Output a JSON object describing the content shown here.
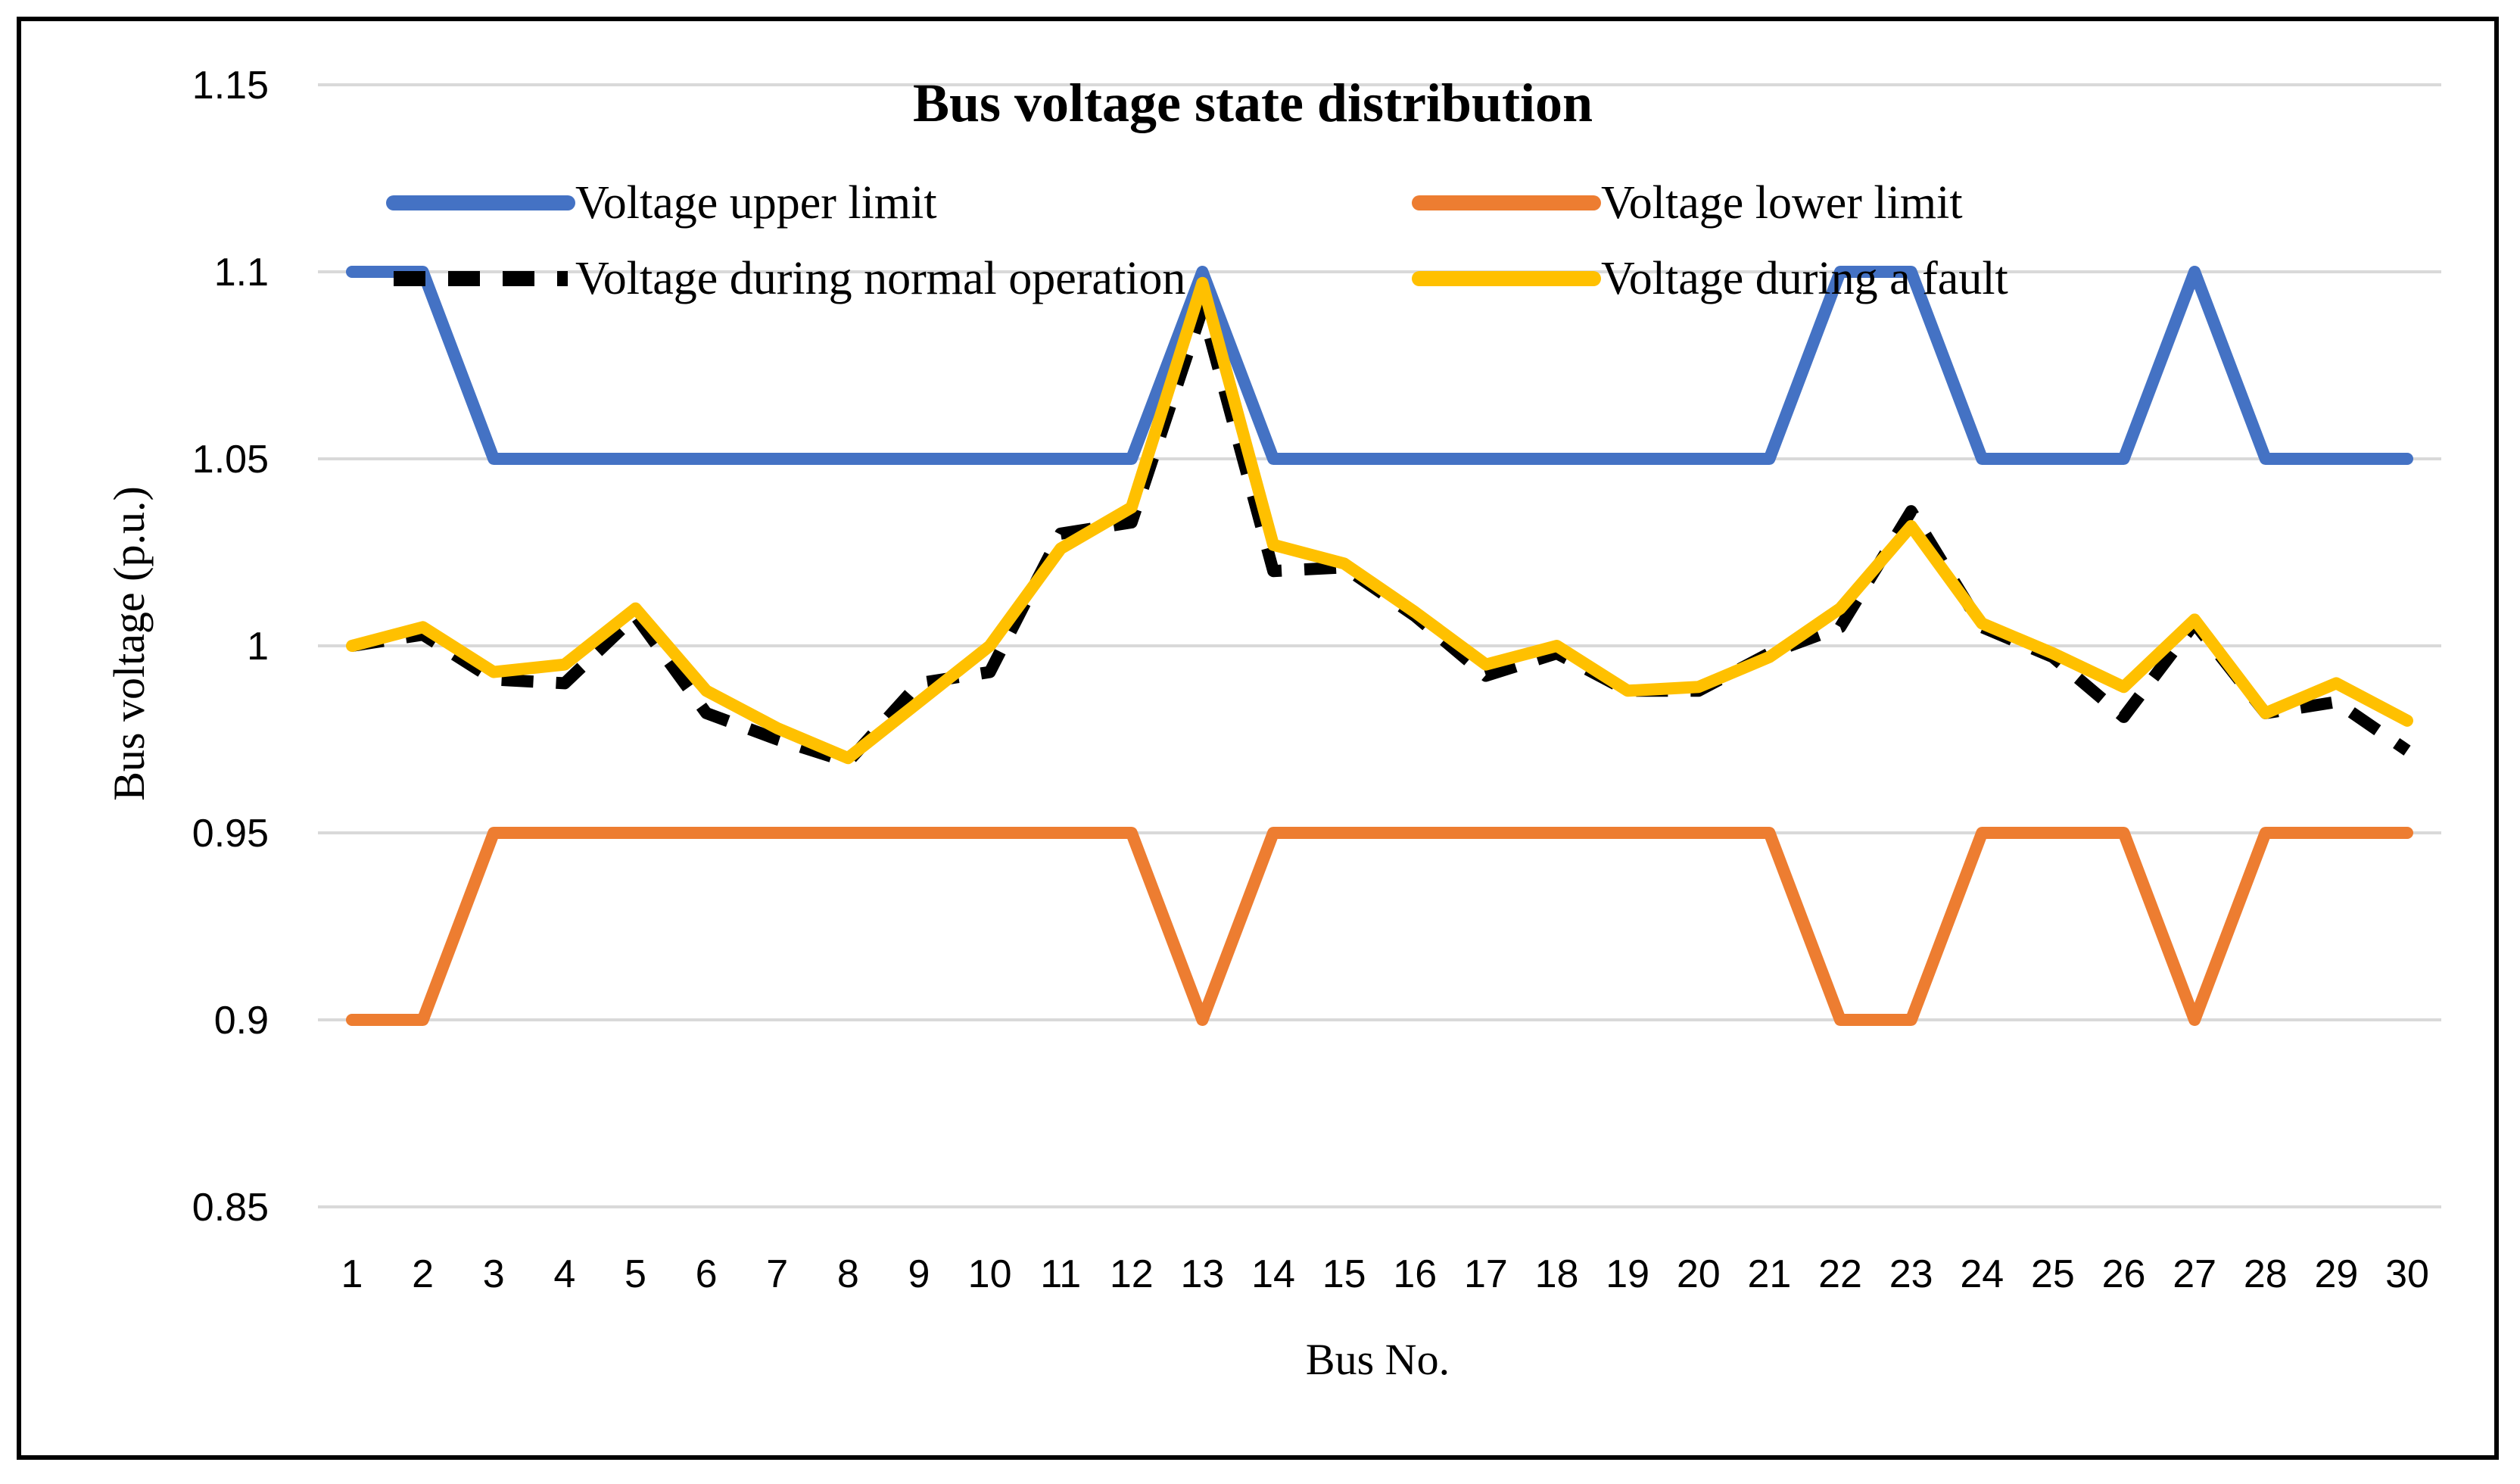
{
  "chart_data": {
    "type": "line",
    "title": "Bus voltage state distribution",
    "xlabel": "Bus No.",
    "ylabel": "Bus voltage (p.u.)",
    "ylim": [
      0.85,
      1.15
    ],
    "yticks": [
      0.85,
      0.9,
      0.95,
      1,
      1.05,
      1.1,
      1.15
    ],
    "ytick_labels": [
      "0.85",
      "0.9",
      "0.95",
      "1",
      "1.05",
      "1.1",
      "1.15"
    ],
    "grid": true,
    "legend_position": "top",
    "categories": [
      "1",
      "2",
      "3",
      "4",
      "5",
      "6",
      "7",
      "8",
      "9",
      "10",
      "11",
      "12",
      "13",
      "14",
      "15",
      "16",
      "17",
      "18",
      "19",
      "20",
      "21",
      "22",
      "23",
      "24",
      "25",
      "26",
      "27",
      "28",
      "29",
      "30"
    ],
    "series": [
      {
        "name": "Voltage upper limit",
        "color": "#4472C4",
        "style": "solid",
        "values": [
          1.1,
          1.1,
          1.05,
          1.05,
          1.05,
          1.05,
          1.05,
          1.05,
          1.05,
          1.05,
          1.05,
          1.05,
          1.1,
          1.05,
          1.05,
          1.05,
          1.05,
          1.05,
          1.05,
          1.05,
          1.05,
          1.1,
          1.1,
          1.05,
          1.05,
          1.05,
          1.1,
          1.05,
          1.05,
          1.05
        ]
      },
      {
        "name": "Voltage lower limit",
        "color": "#ED7D31",
        "style": "solid",
        "values": [
          0.9,
          0.9,
          0.95,
          0.95,
          0.95,
          0.95,
          0.95,
          0.95,
          0.95,
          0.95,
          0.95,
          0.95,
          0.9,
          0.95,
          0.95,
          0.95,
          0.95,
          0.95,
          0.95,
          0.95,
          0.95,
          0.9,
          0.9,
          0.95,
          0.95,
          0.95,
          0.9,
          0.95,
          0.95,
          0.95
        ]
      },
      {
        "name": "Voltage during normal operation",
        "color": "#000000",
        "style": "dashed",
        "values": [
          1.0,
          1.003,
          0.991,
          0.99,
          1.008,
          0.982,
          0.975,
          0.969,
          0.99,
          0.993,
          1.03,
          1.033,
          1.09,
          1.02,
          1.021,
          1.008,
          0.992,
          0.998,
          0.988,
          0.988,
          0.998,
          1.005,
          1.036,
          1.005,
          0.997,
          0.981,
          1.006,
          0.982,
          0.985,
          0.972
        ]
      },
      {
        "name": "Voltage during a fault",
        "color": "#FFC000",
        "style": "solid",
        "values": [
          1.0,
          1.005,
          0.993,
          0.995,
          1.01,
          0.988,
          0.978,
          0.97,
          0.985,
          1.0,
          1.026,
          1.037,
          1.097,
          1.027,
          1.022,
          1.009,
          0.995,
          1.0,
          0.988,
          0.989,
          0.997,
          1.01,
          1.032,
          1.006,
          0.998,
          0.989,
          1.007,
          0.982,
          0.99,
          0.98
        ]
      }
    ]
  }
}
